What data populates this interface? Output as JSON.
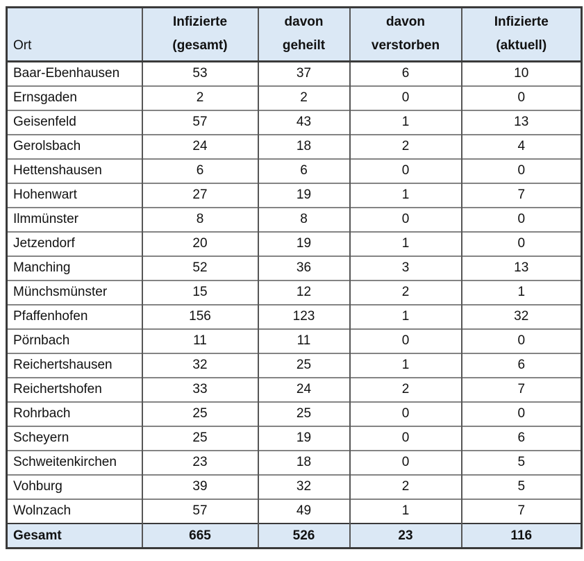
{
  "table": {
    "header": {
      "ort": "Ort",
      "columns": [
        {
          "line1": "Infizierte",
          "line2": "(gesamt)"
        },
        {
          "line1": "davon",
          "line2": "geheilt"
        },
        {
          "line1": "davon",
          "line2": "verstorben"
        },
        {
          "line1": "Infizierte",
          "line2": "(aktuell)"
        }
      ]
    },
    "rows": [
      {
        "ort": "Baar-Ebenhausen",
        "gesamt": "53",
        "geheilt": "37",
        "verstorben": "6",
        "aktuell": "10"
      },
      {
        "ort": "Ernsgaden",
        "gesamt": "2",
        "geheilt": "2",
        "verstorben": "0",
        "aktuell": "0"
      },
      {
        "ort": "Geisenfeld",
        "gesamt": "57",
        "geheilt": "43",
        "verstorben": "1",
        "aktuell": "13"
      },
      {
        "ort": "Gerolsbach",
        "gesamt": "24",
        "geheilt": "18",
        "verstorben": "2",
        "aktuell": "4"
      },
      {
        "ort": "Hettenshausen",
        "gesamt": "6",
        "geheilt": "6",
        "verstorben": "0",
        "aktuell": "0"
      },
      {
        "ort": "Hohenwart",
        "gesamt": "27",
        "geheilt": "19",
        "verstorben": "1",
        "aktuell": "7"
      },
      {
        "ort": "Ilmmünster",
        "gesamt": "8",
        "geheilt": "8",
        "verstorben": "0",
        "aktuell": "0"
      },
      {
        "ort": "Jetzendorf",
        "gesamt": "20",
        "geheilt": "19",
        "verstorben": "1",
        "aktuell": "0"
      },
      {
        "ort": "Manching",
        "gesamt": "52",
        "geheilt": "36",
        "verstorben": "3",
        "aktuell": "13"
      },
      {
        "ort": "Münchsmünster",
        "gesamt": "15",
        "geheilt": "12",
        "verstorben": "2",
        "aktuell": "1"
      },
      {
        "ort": "Pfaffenhofen",
        "gesamt": "156",
        "geheilt": "123",
        "verstorben": "1",
        "aktuell": "32"
      },
      {
        "ort": "Pörnbach",
        "gesamt": "11",
        "geheilt": "11",
        "verstorben": "0",
        "aktuell": "0"
      },
      {
        "ort": "Reichertshausen",
        "gesamt": "32",
        "geheilt": "25",
        "verstorben": "1",
        "aktuell": "6"
      },
      {
        "ort": "Reichertshofen",
        "gesamt": "33",
        "geheilt": "24",
        "verstorben": "2",
        "aktuell": "7"
      },
      {
        "ort": "Rohrbach",
        "gesamt": "25",
        "geheilt": "25",
        "verstorben": "0",
        "aktuell": "0"
      },
      {
        "ort": "Scheyern",
        "gesamt": "25",
        "geheilt": "19",
        "verstorben": "0",
        "aktuell": "6"
      },
      {
        "ort": "Schweitenkirchen",
        "gesamt": "23",
        "geheilt": "18",
        "verstorben": "0",
        "aktuell": "5"
      },
      {
        "ort": "Vohburg",
        "gesamt": "39",
        "geheilt": "32",
        "verstorben": "2",
        "aktuell": "5"
      },
      {
        "ort": "Wolnzach",
        "gesamt": "57",
        "geheilt": "49",
        "verstorben": "1",
        "aktuell": "7"
      }
    ],
    "total": {
      "ort": "Gesamt",
      "gesamt": "665",
      "geheilt": "526",
      "verstorben": "23",
      "aktuell": "116"
    }
  },
  "colors": {
    "header_bg": "#dbe8f5",
    "total_row_bg": "#dbe8f5",
    "border_dark": "#3a3a3a",
    "border_column": "#565656",
    "border_row": "#848484",
    "text": "#111111"
  }
}
